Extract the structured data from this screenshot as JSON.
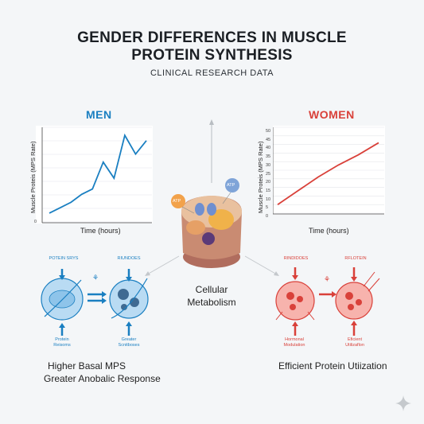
{
  "header": {
    "title_line1": "GENDER DIFFERENCES IN MUSCLE",
    "title_line2": "PROTEIN SYNTHESIS",
    "subtitle": "CLINICAL RESEARCH DATA"
  },
  "men": {
    "heading": "MEN",
    "color": "#1a7fc1",
    "ylabel": "Muscle Proteis (MPS Rate)",
    "xlabel": "Time (hours)",
    "y_tick_zero": "0",
    "left_label": "POTEIN SRYS",
    "right_label": "RIUNDOES",
    "bottom_left_label": "Protein\nReisoms",
    "bottom_right_label": "Greater\nScnitboses",
    "summary_line1": "Higher Basal MPS",
    "summary_line2": "Greater Anobalic Response"
  },
  "women": {
    "heading": "WOMEN",
    "color": "#d9413a",
    "ylabel": "Muscle Proteis (MPS Rate)",
    "xlabel": "Time (hours)",
    "y_ticks": [
      "50",
      "45",
      "40",
      "35",
      "30",
      "25",
      "20",
      "15",
      "10",
      "5",
      "0"
    ],
    "left_label": "RINDIDOES",
    "right_label": "RFLOTEIN",
    "bottom_left_label": "Hormonal\nModulation",
    "bottom_right_label": "Eficient\nUtilizaflon",
    "summary": "Efficient Protein Utiization"
  },
  "center": {
    "label_line1": "Cellular",
    "label_line2": "Metabolism",
    "atp_left": "ATP",
    "atp_right": "ATP"
  },
  "chart_data": [
    {
      "type": "line",
      "title": "MEN",
      "xlabel": "Time (hours)",
      "ylabel": "Muscle Proteis (MPS Rate)",
      "series": [
        {
          "values": [
            3,
            5,
            7,
            10,
            12,
            22,
            16,
            32,
            25,
            30
          ]
        }
      ],
      "ylim": [
        0,
        35
      ]
    },
    {
      "type": "line",
      "title": "WOMEN",
      "xlabel": "Time (hours)",
      "ylabel": "Muscle Proteis (MPS Rate)",
      "series": [
        {
          "values": [
            5,
            13,
            21,
            28,
            34,
            41
          ]
        }
      ],
      "ylim": [
        0,
        50
      ]
    }
  ]
}
